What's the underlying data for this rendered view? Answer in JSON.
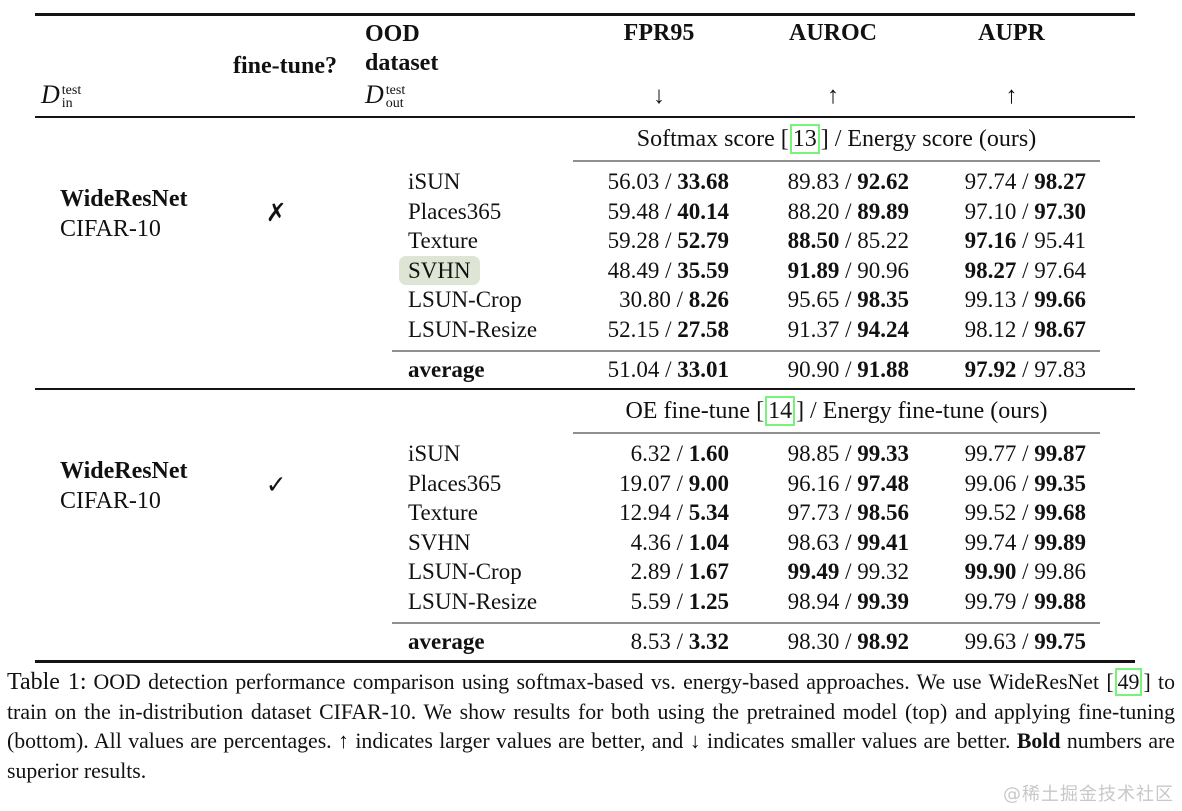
{
  "format": {
    "separator": " / "
  },
  "colors": {
    "cite_green": "#79f279",
    "svhn_highlight": "#dee5d5",
    "rule_gray": "#8f8f8f",
    "rule_black": "#141414",
    "watermark_gray": "#c8c8c8"
  },
  "header": {
    "d_in": {
      "symbol": "D",
      "sup": "test",
      "sub": "in"
    },
    "fine_tune": "fine-tune?",
    "ood_line1": "OOD",
    "ood_line2": "dataset",
    "d_out": {
      "symbol": "D",
      "sup": "test",
      "sub": "out"
    },
    "metrics": [
      {
        "label": "FPR95",
        "arrow": "↓"
      },
      {
        "label": "AUROC",
        "arrow": "↑"
      },
      {
        "label": "AUPR",
        "arrow": "↑"
      }
    ]
  },
  "sections": [
    {
      "title": {
        "pre": "Softmax score [",
        "cite": "13",
        "post": "] / Energy score (ours)"
      },
      "model": "WideResNet",
      "dataset": "CIFAR-10",
      "mark": "✗",
      "rows": [
        {
          "name": "iSUN",
          "highlight": false,
          "cells": [
            [
              "56.03",
              "33.68",
              2
            ],
            [
              "89.83",
              "92.62",
              2
            ],
            [
              "97.74",
              "98.27",
              2
            ]
          ]
        },
        {
          "name": "Places365",
          "highlight": false,
          "cells": [
            [
              "59.48",
              "40.14",
              2
            ],
            [
              "88.20",
              "89.89",
              2
            ],
            [
              "97.10",
              "97.30",
              2
            ]
          ]
        },
        {
          "name": "Texture",
          "highlight": false,
          "cells": [
            [
              "59.28",
              "52.79",
              2
            ],
            [
              "88.50",
              "85.22",
              1
            ],
            [
              "97.16",
              "95.41",
              1
            ]
          ]
        },
        {
          "name": "SVHN",
          "highlight": true,
          "cells": [
            [
              "48.49",
              "35.59",
              2
            ],
            [
              "91.89",
              "90.96",
              1
            ],
            [
              "98.27",
              "97.64",
              1
            ]
          ]
        },
        {
          "name": "LSUN-Crop",
          "highlight": false,
          "cells": [
            [
              "30.80",
              "8.26",
              2
            ],
            [
              "95.65",
              "98.35",
              2
            ],
            [
              "99.13",
              "99.66",
              2
            ]
          ]
        },
        {
          "name": "LSUN-Resize",
          "highlight": false,
          "cells": [
            [
              "52.15",
              "27.58",
              2
            ],
            [
              "91.37",
              "94.24",
              2
            ],
            [
              "98.12",
              "98.67",
              2
            ]
          ]
        }
      ],
      "average": {
        "label": "average",
        "cells": [
          [
            "51.04",
            "33.01",
            2
          ],
          [
            "90.90",
            "91.88",
            2
          ],
          [
            "97.92",
            "97.83",
            1
          ]
        ]
      }
    },
    {
      "title": {
        "pre": "OE fine-tune [",
        "cite": "14",
        "post": "] / Energy fine-tune (ours)"
      },
      "model": "WideResNet",
      "dataset": "CIFAR-10",
      "mark": "✓",
      "rows": [
        {
          "name": "iSUN",
          "highlight": false,
          "cells": [
            [
              "6.32",
              "1.60",
              2
            ],
            [
              "98.85",
              "99.33",
              2
            ],
            [
              "99.77",
              "99.87",
              2
            ]
          ]
        },
        {
          "name": "Places365",
          "highlight": false,
          "cells": [
            [
              "19.07",
              "9.00",
              2
            ],
            [
              "96.16",
              "97.48",
              2
            ],
            [
              "99.06",
              "99.35",
              2
            ]
          ]
        },
        {
          "name": "Texture",
          "highlight": false,
          "cells": [
            [
              "12.94",
              "5.34",
              2
            ],
            [
              "97.73",
              "98.56",
              2
            ],
            [
              "99.52",
              "99.68",
              2
            ]
          ]
        },
        {
          "name": "SVHN",
          "highlight": false,
          "cells": [
            [
              "4.36",
              "1.04",
              2
            ],
            [
              "98.63",
              "99.41",
              2
            ],
            [
              "99.74",
              "99.89",
              2
            ]
          ]
        },
        {
          "name": "LSUN-Crop",
          "highlight": false,
          "cells": [
            [
              "2.89",
              "1.67",
              2
            ],
            [
              "99.49",
              "99.32",
              1
            ],
            [
              "99.90",
              "99.86",
              1
            ]
          ]
        },
        {
          "name": "LSUN-Resize",
          "highlight": false,
          "cells": [
            [
              "5.59",
              "1.25",
              2
            ],
            [
              "98.94",
              "99.39",
              2
            ],
            [
              "99.79",
              "99.88",
              2
            ]
          ]
        }
      ],
      "average": {
        "label": "average",
        "cells": [
          [
            "8.53",
            "3.32",
            2
          ],
          [
            "98.30",
            "98.92",
            2
          ],
          [
            "99.63",
            "99.75",
            2
          ]
        ]
      }
    }
  ],
  "caption": {
    "label": "Table 1:",
    "seg1": "OOD detection performance comparison using softmax-based vs. energy-based approaches. We use WideResNet [",
    "cite": "49",
    "seg2": "] to train on the in-distribution dataset CIFAR-10. We show results for both using the pretrained model (top) and applying fine-tuning (bottom). All values are percentages. ↑ indicates larger values are better, and ↓ indicates smaller values are better. ",
    "bold": "Bold",
    "seg3": " numbers are superior results."
  },
  "watermark": "@稀土掘金技术社区"
}
